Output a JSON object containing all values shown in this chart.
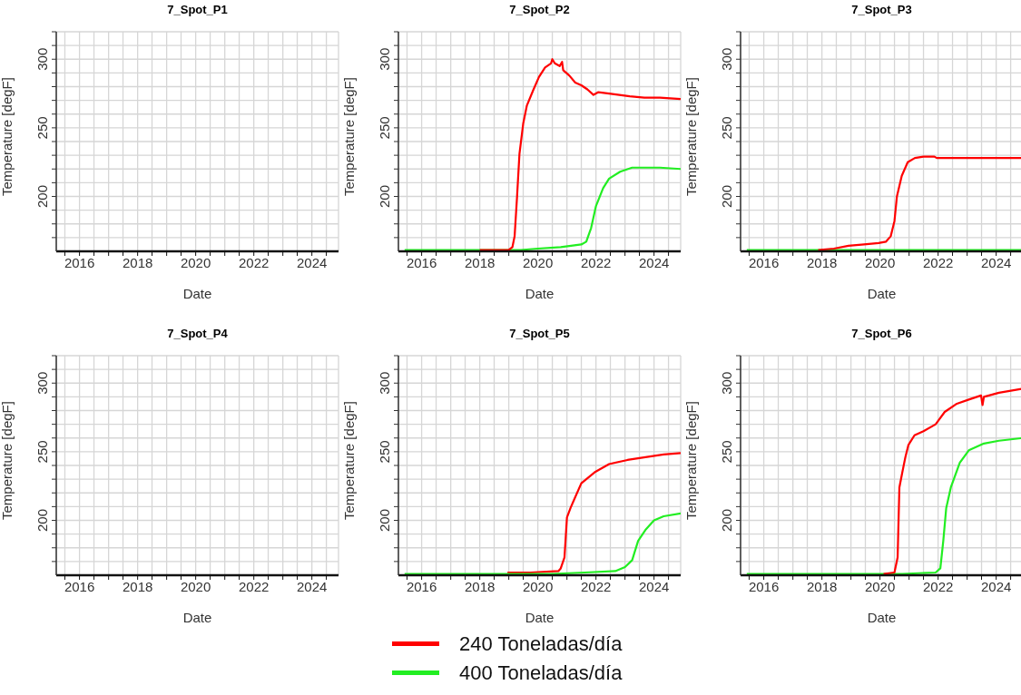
{
  "chart_data": [
    {
      "type": "line",
      "title": "7_Spot_P1",
      "xlabel": "Date",
      "ylabel": "Temperature [degF]",
      "xlim": [
        "2015-03-15",
        "2024-12-01"
      ],
      "ylim": [
        160,
        320
      ],
      "grid": true,
      "xticks": [
        {
          "value": "2015-07",
          "label": null
        },
        "2016",
        {
          "value": "2016-07",
          "label": null
        },
        {
          "value": "2017",
          "label": null
        },
        {
          "value": "2017-07",
          "label": null
        },
        "2018",
        {
          "value": "2018-07",
          "label": null
        },
        {
          "value": "2019",
          "label": null
        },
        {
          "value": "2019-07",
          "label": null
        },
        "2020",
        {
          "value": "2020-07",
          "label": null
        },
        {
          "value": "2021",
          "label": null
        },
        {
          "value": "2021-07",
          "label": null
        },
        "2022",
        {
          "value": "2022-07",
          "label": null
        },
        {
          "value": "2023",
          "label": null
        },
        {
          "value": "2023-07",
          "label": null
        },
        "2024",
        {
          "value": "2024-07",
          "label": null
        }
      ],
      "yticks": [
        {
          "value": 170,
          "label": null
        },
        {
          "value": 180,
          "label": null
        },
        {
          "value": 190,
          "label": null
        },
        200,
        {
          "value": 210,
          "label": null
        },
        {
          "value": 220,
          "label": null
        },
        {
          "value": 230,
          "label": null
        },
        {
          "value": 240,
          "label": null
        },
        250,
        {
          "value": 260,
          "label": null
        },
        {
          "value": 270,
          "label": null
        },
        {
          "value": 280,
          "label": null
        },
        {
          "value": 290,
          "label": null
        },
        300,
        {
          "value": 310,
          "label": null
        },
        {
          "value": 320,
          "label": null
        }
      ]
    },
    {
      "type": "line",
      "title": "7_Spot_P2",
      "xlabel": "Date",
      "ylabel": "Temperature [degF]",
      "xlim": [
        "2015-03-15",
        "2024-12-01"
      ],
      "ylim": [
        160,
        320
      ],
      "grid": true,
      "xticks": [
        {
          "value": "2015-07",
          "label": null
        },
        "2016",
        {
          "value": "2016-07",
          "label": null
        },
        {
          "value": "2017",
          "label": null
        },
        {
          "value": "2017-07",
          "label": null
        },
        "2018",
        {
          "value": "2018-07",
          "label": null
        },
        {
          "value": "2019",
          "label": null
        },
        {
          "value": "2019-07",
          "label": null
        },
        "2020",
        {
          "value": "2020-07",
          "label": null
        },
        {
          "value": "2021",
          "label": null
        },
        {
          "value": "2021-07",
          "label": null
        },
        "2022",
        {
          "value": "2022-07",
          "label": null
        },
        {
          "value": "2023",
          "label": null
        },
        {
          "value": "2023-07",
          "label": null
        },
        "2024",
        {
          "value": "2024-07",
          "label": null
        }
      ],
      "yticks": [
        {
          "value": 170,
          "label": null
        },
        {
          "value": 180,
          "label": null
        },
        {
          "value": 190,
          "label": null
        },
        200,
        {
          "value": 210,
          "label": null
        },
        {
          "value": 220,
          "label": null
        },
        {
          "value": 230,
          "label": null
        },
        {
          "value": 240,
          "label": null
        },
        250,
        {
          "value": 260,
          "label": null
        },
        {
          "value": 270,
          "label": null
        },
        {
          "value": 280,
          "label": null
        },
        {
          "value": 290,
          "label": null
        },
        300,
        {
          "value": 310,
          "label": null
        },
        {
          "value": 320,
          "label": null
        }
      ],
      "series": [
        {
          "color": "#22ee22",
          "x": [
            "2015-06-01",
            "2019-06-01",
            "2020-01-01",
            "2020-10-15",
            "2021-07-01",
            "2021-09-01",
            "2021-11-01",
            "2022-01-01",
            "2022-04-01",
            "2022-06-15",
            "2022-11-01",
            "2023-04-01",
            "2024-03-15",
            "2024-12-01"
          ],
          "values": [
            161,
            161,
            162,
            163,
            165,
            167,
            177,
            193,
            206,
            213,
            218,
            221,
            221,
            220
          ]
        },
        {
          "color": "#ff0000",
          "x": [
            "2018-01-01",
            "2019-01-01",
            "2019-02-15",
            "2019-03-15",
            "2019-04-15",
            "2019-05-15",
            "2019-07-01",
            "2019-08-15",
            "2019-11-01",
            "2020-01-15",
            "2020-04-01",
            "2020-06-15",
            "2020-07-01",
            "2020-08-01",
            "2020-10-01",
            "2020-11-01",
            "2020-11-15",
            "2021-02-01",
            "2021-04-15",
            "2021-07-01",
            "2021-09-15",
            "2021-12-01",
            "2022-02-01",
            "2022-06-15",
            "2023-03-01",
            "2023-09-01",
            "2024-03-15",
            "2024-12-01"
          ],
          "values": [
            161,
            161,
            163,
            171,
            200,
            231,
            253,
            266,
            277,
            287,
            294,
            297,
            300,
            297,
            295,
            298,
            292,
            288,
            283,
            281,
            278,
            274,
            276,
            275,
            273,
            272,
            272,
            271
          ]
        }
      ]
    },
    {
      "type": "line",
      "title": "7_Spot_P3",
      "xlabel": "Date",
      "ylabel": "Temperature [degF]",
      "xlim": [
        "2015-03-15",
        "2024-12-01"
      ],
      "ylim": [
        160,
        320
      ],
      "grid": true,
      "xticks": [
        {
          "value": "2015-07",
          "label": null
        },
        "2016",
        {
          "value": "2016-07",
          "label": null
        },
        {
          "value": "2017",
          "label": null
        },
        {
          "value": "2017-07",
          "label": null
        },
        "2018",
        {
          "value": "2018-07",
          "label": null
        },
        {
          "value": "2019",
          "label": null
        },
        {
          "value": "2019-07",
          "label": null
        },
        "2020",
        {
          "value": "2020-07",
          "label": null
        },
        {
          "value": "2021",
          "label": null
        },
        {
          "value": "2021-07",
          "label": null
        },
        "2022",
        {
          "value": "2022-07",
          "label": null
        },
        {
          "value": "2023",
          "label": null
        },
        {
          "value": "2023-07",
          "label": null
        },
        "2024",
        {
          "value": "2024-07",
          "label": null
        }
      ],
      "yticks": [
        {
          "value": 170,
          "label": null
        },
        {
          "value": 180,
          "label": null
        },
        {
          "value": 190,
          "label": null
        },
        200,
        {
          "value": 210,
          "label": null
        },
        {
          "value": 220,
          "label": null
        },
        {
          "value": 230,
          "label": null
        },
        {
          "value": 240,
          "label": null
        },
        250,
        {
          "value": 260,
          "label": null
        },
        {
          "value": 270,
          "label": null
        },
        {
          "value": 280,
          "label": null
        },
        {
          "value": 290,
          "label": null
        },
        300,
        {
          "value": 310,
          "label": null
        },
        {
          "value": 320,
          "label": null
        }
      ],
      "series": [
        {
          "color": "#22ee22",
          "x": [
            "2015-06-01",
            "2024-12-01"
          ],
          "values": [
            161,
            161
          ]
        },
        {
          "color": "#ff0000",
          "x": [
            "2017-11-15",
            "2018-06-01",
            "2018-12-01",
            "2019-06-15",
            "2019-12-15",
            "2020-03-15",
            "2020-05-15",
            "2020-07-01",
            "2020-08-01",
            "2020-10-01",
            "2020-12-15",
            "2021-03-15",
            "2021-07-01",
            "2021-11-15",
            "2021-12-15",
            "2024-12-01"
          ],
          "values": [
            161,
            162,
            164,
            165,
            166,
            167,
            171,
            182,
            200,
            215,
            225,
            228,
            229,
            229,
            228,
            228
          ]
        }
      ]
    },
    {
      "type": "line",
      "title": "7_Spot_P4",
      "xlabel": "Date",
      "ylabel": "Temperature [degF]",
      "xlim": [
        "2015-03-15",
        "2024-12-01"
      ],
      "ylim": [
        160,
        320
      ],
      "grid": true,
      "xticks": [
        {
          "value": "2015-07",
          "label": null
        },
        "2016",
        {
          "value": "2016-07",
          "label": null
        },
        {
          "value": "2017",
          "label": null
        },
        {
          "value": "2017-07",
          "label": null
        },
        "2018",
        {
          "value": "2018-07",
          "label": null
        },
        {
          "value": "2019",
          "label": null
        },
        {
          "value": "2019-07",
          "label": null
        },
        "2020",
        {
          "value": "2020-07",
          "label": null
        },
        {
          "value": "2021",
          "label": null
        },
        {
          "value": "2021-07",
          "label": null
        },
        "2022",
        {
          "value": "2022-07",
          "label": null
        },
        {
          "value": "2023",
          "label": null
        },
        {
          "value": "2023-07",
          "label": null
        },
        "2024",
        {
          "value": "2024-07",
          "label": null
        }
      ],
      "yticks": [
        {
          "value": 170,
          "label": null
        },
        {
          "value": 180,
          "label": null
        },
        {
          "value": 190,
          "label": null
        },
        200,
        {
          "value": 210,
          "label": null
        },
        {
          "value": 220,
          "label": null
        },
        {
          "value": 230,
          "label": null
        },
        {
          "value": 240,
          "label": null
        },
        250,
        {
          "value": 260,
          "label": null
        },
        {
          "value": 270,
          "label": null
        },
        {
          "value": 280,
          "label": null
        },
        {
          "value": 290,
          "label": null
        },
        300,
        {
          "value": 310,
          "label": null
        },
        {
          "value": 320,
          "label": null
        }
      ]
    },
    {
      "type": "line",
      "title": "7_Spot_P5",
      "xlabel": "Date",
      "ylabel": "Temperature [degF]",
      "xlim": [
        "2015-03-15",
        "2024-12-01"
      ],
      "ylim": [
        160,
        320
      ],
      "grid": true,
      "legend": "bottom",
      "xticks": [
        {
          "value": "2015-07",
          "label": null
        },
        "2016",
        {
          "value": "2016-07",
          "label": null
        },
        {
          "value": "2017",
          "label": null
        },
        {
          "value": "2017-07",
          "label": null
        },
        "2018",
        {
          "value": "2018-07",
          "label": null
        },
        {
          "value": "2019",
          "label": null
        },
        {
          "value": "2019-07",
          "label": null
        },
        "2020",
        {
          "value": "2020-07",
          "label": null
        },
        {
          "value": "2021",
          "label": null
        },
        {
          "value": "2021-07",
          "label": null
        },
        "2022",
        {
          "value": "2022-07",
          "label": null
        },
        {
          "value": "2023",
          "label": null
        },
        {
          "value": "2023-07",
          "label": null
        },
        "2024",
        {
          "value": "2024-07",
          "label": null
        }
      ],
      "yticks": [
        {
          "value": 170,
          "label": null
        },
        {
          "value": 180,
          "label": null
        },
        {
          "value": 190,
          "label": null
        },
        200,
        {
          "value": 210,
          "label": null
        },
        {
          "value": 220,
          "label": null
        },
        {
          "value": 230,
          "label": null
        },
        {
          "value": 240,
          "label": null
        },
        250,
        {
          "value": 260,
          "label": null
        },
        {
          "value": 270,
          "label": null
        },
        {
          "value": 280,
          "label": null
        },
        {
          "value": 290,
          "label": null
        },
        300,
        {
          "value": 310,
          "label": null
        },
        {
          "value": 320,
          "label": null
        }
      ],
      "series": [
        {
          "name": "240 Toneladas/día",
          "color": "#ff0000",
          "x": [
            "2018-12-15",
            "2019-10-01",
            "2020-09-15",
            "2020-10-15",
            "2020-12-01",
            "2021-01-01",
            "2021-02-15",
            "2021-04-01",
            "2021-07-01",
            "2021-12-15",
            "2022-06-15",
            "2023-02-01",
            "2023-09-15",
            "2024-05-01",
            "2024-12-01"
          ],
          "values": [
            162,
            162,
            163,
            165,
            173,
            202,
            209,
            215,
            227,
            235,
            241,
            244,
            246,
            248,
            249
          ]
        },
        {
          "name": "400 Toneladas/día",
          "color": "#22ee22",
          "x": [
            "2015-06-01",
            "2020-07-01",
            "2021-08-15",
            "2022-09-01",
            "2023-01-01",
            "2023-04-01",
            "2023-06-15",
            "2023-09-15",
            "2024-01-01",
            "2024-05-01",
            "2024-12-01"
          ],
          "values": [
            161,
            161,
            162,
            163,
            166,
            171,
            185,
            193,
            200,
            203,
            205
          ]
        }
      ]
    },
    {
      "type": "line",
      "title": "7_Spot_P6",
      "xlabel": "Date",
      "ylabel": "Temperature [degF]",
      "xlim": [
        "2015-03-15",
        "2024-12-01"
      ],
      "ylim": [
        160,
        320
      ],
      "grid": true,
      "xticks": [
        {
          "value": "2015-07",
          "label": null
        },
        "2016",
        {
          "value": "2016-07",
          "label": null
        },
        {
          "value": "2017",
          "label": null
        },
        {
          "value": "2017-07",
          "label": null
        },
        "2018",
        {
          "value": "2018-07",
          "label": null
        },
        {
          "value": "2019",
          "label": null
        },
        {
          "value": "2019-07",
          "label": null
        },
        "2020",
        {
          "value": "2020-07",
          "label": null
        },
        {
          "value": "2021",
          "label": null
        },
        {
          "value": "2021-07",
          "label": null
        },
        "2022",
        {
          "value": "2022-07",
          "label": null
        },
        {
          "value": "2023",
          "label": null
        },
        {
          "value": "2023-07",
          "label": null
        },
        "2024",
        {
          "value": "2024-07",
          "label": null
        }
      ],
      "yticks": [
        {
          "value": 170,
          "label": null
        },
        {
          "value": 180,
          "label": null
        },
        {
          "value": 190,
          "label": null
        },
        200,
        {
          "value": 210,
          "label": null
        },
        {
          "value": 220,
          "label": null
        },
        {
          "value": 230,
          "label": null
        },
        {
          "value": 240,
          "label": null
        },
        250,
        {
          "value": 260,
          "label": null
        },
        {
          "value": 270,
          "label": null
        },
        {
          "value": 280,
          "label": null
        },
        {
          "value": 290,
          "label": null
        },
        300,
        {
          "value": 310,
          "label": null
        },
        {
          "value": 320,
          "label": null
        }
      ],
      "series": [
        {
          "color": "#22ee22",
          "x": [
            "2015-06-01",
            "2020-10-08",
            "2021-12-01",
            "2022-01-29",
            "2022-03-07",
            "2022-04-13",
            "2022-06-10",
            "2022-10-01",
            "2023-01-22",
            "2023-07-31",
            "2024-02-05",
            "2024-12-01"
          ],
          "values": [
            161,
            161,
            162,
            165,
            185,
            209,
            224,
            242,
            251,
            256,
            258,
            260
          ]
        },
        {
          "color": "#ff0000",
          "x": [
            "2020-02-15",
            "2020-07-01",
            "2020-08-10",
            "2020-09-01",
            "2020-10-08",
            "2020-11-15",
            "2020-12-24",
            "2021-03-10",
            "2021-07-01",
            "2021-12-01",
            "2022-03-25",
            "2022-08-25",
            "2023-01-22",
            "2023-06-25",
            "2023-07-13",
            "2023-07-31",
            "2024-02-05",
            "2024-12-01"
          ],
          "values": [
            161,
            162,
            173,
            224,
            235,
            246,
            255,
            262,
            265,
            270,
            279,
            285,
            288,
            291,
            284,
            290,
            293,
            296
          ]
        }
      ]
    }
  ]
}
